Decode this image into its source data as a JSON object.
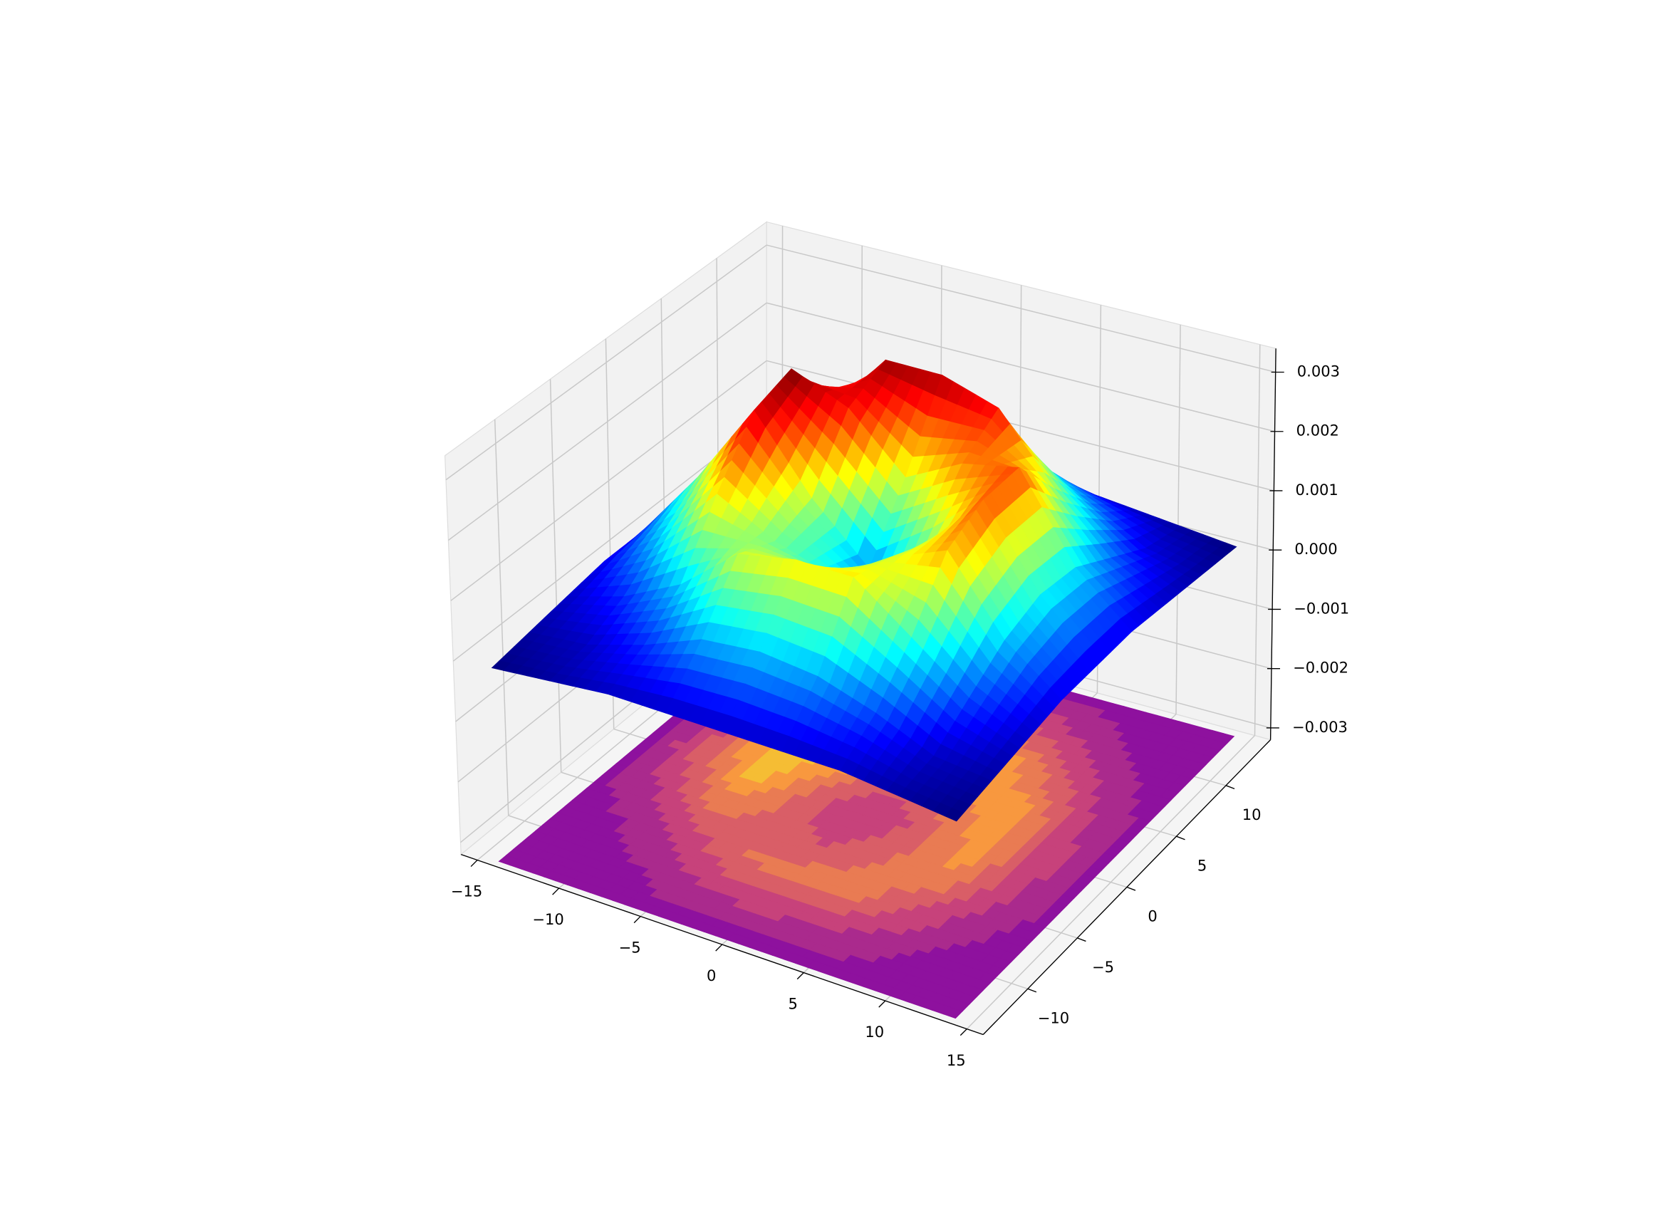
{
  "chart_data": {
    "type": "surface",
    "colormap": "jet",
    "contour_colormap": "plasma",
    "x": [
      -14,
      -10.5,
      -7,
      -3.5,
      0,
      3.5,
      7,
      10.5,
      14
    ],
    "y": [
      -14,
      -10.5,
      -7,
      -3.5,
      0,
      3.5,
      7,
      10.5,
      14
    ],
    "z": [
      [
        0,
        0.0001,
        0.0002,
        0.0002,
        0.0002,
        0.0002,
        0.0002,
        0.0001,
        0
      ],
      [
        0.0001,
        0.0002,
        0.0005,
        0.0009,
        0.001,
        0.0009,
        0.0006,
        0.0002,
        0.0001
      ],
      [
        0.0002,
        0.0005,
        0.001,
        0.0018,
        0.002,
        0.002,
        0.0013,
        0.0006,
        0.0002
      ],
      [
        0.0003,
        0.001,
        0.002,
        0.0015,
        0.0012,
        0.0018,
        0.0022,
        0.001,
        0.0003
      ],
      [
        0.0003,
        0.0015,
        0.0029,
        0.0017,
        0.0008,
        0.0015,
        0.0025,
        0.0012,
        0.0003
      ],
      [
        0.0003,
        0.0014,
        0.0031,
        0.0027,
        0.0018,
        0.0023,
        0.0025,
        0.0011,
        0.0003
      ],
      [
        0.0003,
        0.0009,
        0.0019,
        0.003,
        0.003,
        0.0027,
        0.0016,
        0.0007,
        0.0002
      ],
      [
        0.0002,
        0.0003,
        0.0009,
        0.0014,
        0.0015,
        0.0013,
        0.0008,
        0.0003,
        0.0001
      ],
      [
        0.0001,
        0.0001,
        0.0002,
        0.0003,
        0.0004,
        0.0003,
        0.0002,
        0.0001,
        0
      ]
    ],
    "xlim": [
      -16,
      16
    ],
    "ylim": [
      -14.5,
      14.5
    ],
    "zlim": [
      -0.0032,
      0.0034
    ],
    "xticks": [
      {
        "value": -15,
        "label": "−15"
      },
      {
        "value": -10,
        "label": "−10"
      },
      {
        "value": -5,
        "label": "−5"
      },
      0,
      5,
      10,
      15
    ],
    "yticks": [
      {
        "value": -10,
        "label": "−10"
      },
      {
        "value": -5,
        "label": "−5"
      },
      0,
      5,
      10
    ],
    "zticks": [
      {
        "value": -0.003,
        "label": "−0.003"
      },
      {
        "value": -0.002,
        "label": "−0.002"
      },
      {
        "value": -0.001,
        "label": "−0.001"
      },
      {
        "value": 0,
        "label": "0.000"
      },
      {
        "value": 0.001,
        "label": "0.001"
      },
      {
        "value": 0.002,
        "label": "0.002"
      },
      {
        "value": 0.003,
        "label": "0.003"
      }
    ],
    "grid": true
  }
}
